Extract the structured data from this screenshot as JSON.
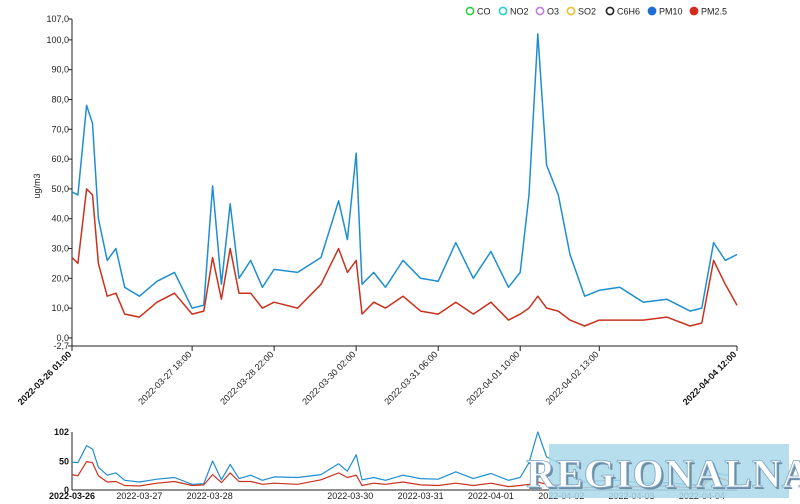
{
  "legend": [
    {
      "label": "CO",
      "color": "#2ecc40",
      "filled": false
    },
    {
      "label": "NO2",
      "color": "#2ad0c8",
      "filled": false
    },
    {
      "label": "O3",
      "color": "#c27ce0",
      "filled": false
    },
    {
      "label": "SO2",
      "color": "#e8c230",
      "filled": false
    },
    {
      "label": "C6H6",
      "color": "#222222",
      "filled": false
    },
    {
      "label": "PM10",
      "color": "#1a6fd6",
      "filled": true
    },
    {
      "label": "PM2.5",
      "color": "#d42a1e",
      "filled": true
    }
  ],
  "watermark": "REGIONALNA",
  "chart_data": [
    {
      "type": "line",
      "ylabel": "ug/m3",
      "ylim": [
        -2.7,
        107.0
      ],
      "ytick_labels": [
        "107,0",
        "100,0",
        "90,0",
        "80,0",
        "70,0",
        "60,0",
        "50,0",
        "40,0",
        "30,0",
        "20,0",
        "10,0",
        "0,0",
        "-2,7"
      ],
      "x_start": "2022-03-26 01:00",
      "x_end": "2022-04-04 12:00",
      "xtick_labels": [
        {
          "label": "2022-03-26 01:00",
          "bold": true
        },
        {
          "label": "2022-03-27 18:00",
          "bold": false
        },
        {
          "label": "2022-03-28 22:00",
          "bold": false
        },
        {
          "label": "2022-03-30 02:00",
          "bold": false
        },
        {
          "label": "2022-03-31 06:00",
          "bold": false
        },
        {
          "label": "2022-04-01 10:00",
          "bold": false
        },
        {
          "label": "2022-04-02 13:00",
          "bold": false
        },
        {
          "label": "2022-04-04 12:00",
          "bold": true
        }
      ],
      "series": [
        {
          "name": "PM10",
          "color": "#1e8ed0",
          "x": [
            "2022-03-26 01:00",
            "2022-03-26 03:00",
            "2022-03-26 06:00",
            "2022-03-26 08:00",
            "2022-03-26 10:00",
            "2022-03-26 13:00",
            "2022-03-26 16:00",
            "2022-03-26 19:00",
            "2022-03-27 00:00",
            "2022-03-27 06:00",
            "2022-03-27 12:00",
            "2022-03-27 18:00",
            "2022-03-27 22:00",
            "2022-03-28 01:00",
            "2022-03-28 04:00",
            "2022-03-28 07:00",
            "2022-03-28 10:00",
            "2022-03-28 14:00",
            "2022-03-28 18:00",
            "2022-03-28 22:00",
            "2022-03-29 06:00",
            "2022-03-29 14:00",
            "2022-03-29 20:00",
            "2022-03-29 23:00",
            "2022-03-30 02:00",
            "2022-03-30 04:00",
            "2022-03-30 08:00",
            "2022-03-30 12:00",
            "2022-03-30 18:00",
            "2022-03-31 00:00",
            "2022-03-31 06:00",
            "2022-03-31 12:00",
            "2022-03-31 18:00",
            "2022-04-01 00:00",
            "2022-04-01 06:00",
            "2022-04-01 10:00",
            "2022-04-01 13:00",
            "2022-04-01 16:00",
            "2022-04-01 19:00",
            "2022-04-01 23:00",
            "2022-04-02 03:00",
            "2022-04-02 08:00",
            "2022-04-02 13:00",
            "2022-04-02 20:00",
            "2022-04-03 04:00",
            "2022-04-03 12:00",
            "2022-04-03 20:00",
            "2022-04-04 00:00",
            "2022-04-04 04:00",
            "2022-04-04 08:00",
            "2022-04-04 12:00"
          ],
          "values": [
            49,
            48,
            78,
            72,
            40,
            26,
            30,
            17,
            14,
            19,
            22,
            10,
            11,
            51,
            18,
            45,
            20,
            26,
            17,
            23,
            22,
            27,
            46,
            33,
            62,
            18,
            22,
            17,
            26,
            20,
            19,
            32,
            20,
            29,
            17,
            22,
            48,
            102,
            58,
            48,
            28,
            14,
            16,
            17,
            12,
            13,
            9,
            10,
            32,
            26,
            28
          ]
        },
        {
          "name": "PM2.5",
          "color": "#c8321e",
          "x": [
            "2022-03-26 01:00",
            "2022-03-26 03:00",
            "2022-03-26 06:00",
            "2022-03-26 08:00",
            "2022-03-26 10:00",
            "2022-03-26 13:00",
            "2022-03-26 16:00",
            "2022-03-26 19:00",
            "2022-03-27 00:00",
            "2022-03-27 06:00",
            "2022-03-27 12:00",
            "2022-03-27 18:00",
            "2022-03-27 22:00",
            "2022-03-28 01:00",
            "2022-03-28 04:00",
            "2022-03-28 07:00",
            "2022-03-28 10:00",
            "2022-03-28 14:00",
            "2022-03-28 18:00",
            "2022-03-28 22:00",
            "2022-03-29 06:00",
            "2022-03-29 14:00",
            "2022-03-29 20:00",
            "2022-03-29 23:00",
            "2022-03-30 02:00",
            "2022-03-30 04:00",
            "2022-03-30 08:00",
            "2022-03-30 12:00",
            "2022-03-30 18:00",
            "2022-03-31 00:00",
            "2022-03-31 06:00",
            "2022-03-31 12:00",
            "2022-03-31 18:00",
            "2022-04-01 00:00",
            "2022-04-01 06:00",
            "2022-04-01 10:00",
            "2022-04-01 13:00",
            "2022-04-01 16:00",
            "2022-04-01 19:00",
            "2022-04-01 23:00",
            "2022-04-02 03:00",
            "2022-04-02 08:00",
            "2022-04-02 13:00",
            "2022-04-02 20:00",
            "2022-04-03 04:00",
            "2022-04-03 12:00",
            "2022-04-03 20:00",
            "2022-04-04 00:00",
            "2022-04-04 04:00",
            "2022-04-04 08:00",
            "2022-04-04 12:00"
          ],
          "values": [
            27,
            25,
            50,
            48,
            25,
            14,
            15,
            8,
            7,
            12,
            15,
            8,
            9,
            27,
            13,
            30,
            15,
            15,
            10,
            12,
            10,
            18,
            30,
            22,
            26,
            8,
            12,
            10,
            14,
            9,
            8,
            12,
            8,
            12,
            6,
            8,
            10,
            14,
            10,
            9,
            6,
            4,
            6,
            6,
            6,
            7,
            4,
            5,
            26,
            18,
            11
          ]
        }
      ]
    },
    {
      "type": "line",
      "role": "overview",
      "ylim": [
        0,
        102
      ],
      "ytick_labels": [
        "102",
        "50",
        "0"
      ],
      "xtick_labels": [
        {
          "label": "2022-03-26",
          "bold": true
        },
        {
          "label": "2022-03-27",
          "bold": false
        },
        {
          "label": "2022-03-28",
          "bold": false
        },
        {
          "label": "2022-03-30",
          "bold": false
        },
        {
          "label": "2022-03-31",
          "bold": false
        },
        {
          "label": "2022-04-01",
          "bold": false
        },
        {
          "label": "2022-04-02",
          "bold": false
        },
        {
          "label": "2022-04-03",
          "bold": false
        },
        {
          "label": "2022-04-04",
          "bold": false
        }
      ]
    }
  ]
}
